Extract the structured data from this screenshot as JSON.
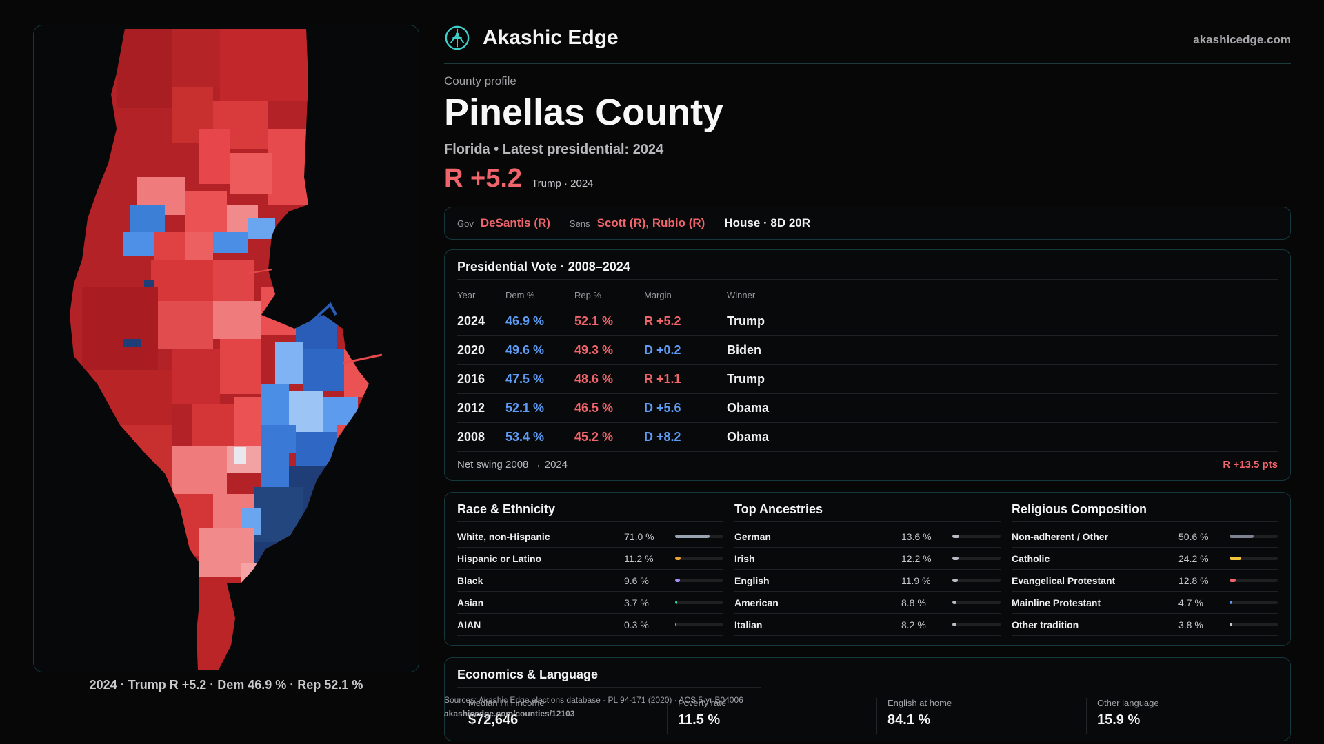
{
  "brand": {
    "name": "Akashic Edge",
    "site": "akashicedge.com"
  },
  "profile": {
    "kicker": "County profile",
    "county": "Pinellas County",
    "subtitle": "Florida • Latest presidential: 2024",
    "headline_margin": "R +5.2",
    "headline_note": "Trump · 2024"
  },
  "officials": {
    "gov_label": "Gov",
    "gov": "DeSantis (R)",
    "sens_label": "Sens",
    "sens": "Scott (R), Rubio (R)",
    "house": "House · 8D 20R"
  },
  "presidential": {
    "title": "Presidential Vote · 2008–2024",
    "headers": [
      "Year",
      "Dem %",
      "Rep %",
      "Margin",
      "Winner"
    ],
    "rows": [
      {
        "year": "2024",
        "dem": "46.9 %",
        "rep": "52.1 %",
        "margin": "R +5.2",
        "party": "R",
        "winner": "Trump"
      },
      {
        "year": "2020",
        "dem": "49.6 %",
        "rep": "49.3 %",
        "margin": "D +0.2",
        "party": "D",
        "winner": "Biden"
      },
      {
        "year": "2016",
        "dem": "47.5 %",
        "rep": "48.6 %",
        "margin": "R +1.1",
        "party": "R",
        "winner": "Trump"
      },
      {
        "year": "2012",
        "dem": "52.1 %",
        "rep": "46.5 %",
        "margin": "D +5.6",
        "party": "D",
        "winner": "Obama"
      },
      {
        "year": "2008",
        "dem": "53.4 %",
        "rep": "45.2 %",
        "margin": "D +8.2",
        "party": "D",
        "winner": "Obama"
      }
    ],
    "net_swing_label": "Net swing 2008 → 2024",
    "net_swing_value": "R +13.5 pts"
  },
  "demographics": [
    {
      "title": "Race & Ethnicity",
      "rows": [
        {
          "name": "White, non-Hispanic",
          "pct": "71.0 %",
          "value": 71.0,
          "color": "#9aa3b2"
        },
        {
          "name": "Hispanic or Latino",
          "pct": "11.2 %",
          "value": 11.2,
          "color": "#e8a23a"
        },
        {
          "name": "Black",
          "pct": "9.6 %",
          "value": 9.6,
          "color": "#a78bfa"
        },
        {
          "name": "Asian",
          "pct": "3.7 %",
          "value": 3.7,
          "color": "#34d399"
        },
        {
          "name": "AIAN",
          "pct": "0.3 %",
          "value": 0.3,
          "color": "#9aa3b2"
        }
      ]
    },
    {
      "title": "Top Ancestries",
      "rows": [
        {
          "name": "German",
          "pct": "13.6 %",
          "value": 13.6,
          "color": "#b8bcc4"
        },
        {
          "name": "Irish",
          "pct": "12.2 %",
          "value": 12.2,
          "color": "#b8bcc4"
        },
        {
          "name": "English",
          "pct": "11.9 %",
          "value": 11.9,
          "color": "#b8bcc4"
        },
        {
          "name": "American",
          "pct": "8.8 %",
          "value": 8.8,
          "color": "#b8bcc4"
        },
        {
          "name": "Italian",
          "pct": "8.2 %",
          "value": 8.2,
          "color": "#b8bcc4"
        }
      ]
    },
    {
      "title": "Religious Composition",
      "rows": [
        {
          "name": "Non-adherent / Other",
          "pct": "50.6 %",
          "value": 50.6,
          "color": "#7d8290"
        },
        {
          "name": "Catholic",
          "pct": "24.2 %",
          "value": 24.2,
          "color": "#f2c53d"
        },
        {
          "name": "Evangelical Protestant",
          "pct": "12.8 %",
          "value": 12.8,
          "color": "#f0646b"
        },
        {
          "name": "Mainline Protestant",
          "pct": "4.7 %",
          "value": 4.7,
          "color": "#5f9cf5"
        },
        {
          "name": "Other tradition",
          "pct": "3.8 %",
          "value": 3.8,
          "color": "#c7c7cc"
        }
      ]
    }
  ],
  "economics": {
    "title": "Economics & Language",
    "stats": [
      {
        "label": "Median HH income",
        "value": "$72,646"
      },
      {
        "label": "Poverty rate",
        "value": "11.5 %"
      },
      {
        "label": "English at home",
        "value": "84.1 %"
      },
      {
        "label": "Other language",
        "value": "15.9 %"
      }
    ]
  },
  "sources": {
    "line": "Sources: Akashic Edge elections database · PL 94-171 (2020) · ACS 5-yr B04006",
    "url": "akashicedge.com/counties/12103"
  },
  "map_caption": "2024 · Trump R +5.2 · Dem 46.9 % · Rep 52.1 %",
  "colors": {
    "rep": "#f0646b",
    "dem": "#5f9cf5",
    "accent": "#3fd0c9"
  }
}
